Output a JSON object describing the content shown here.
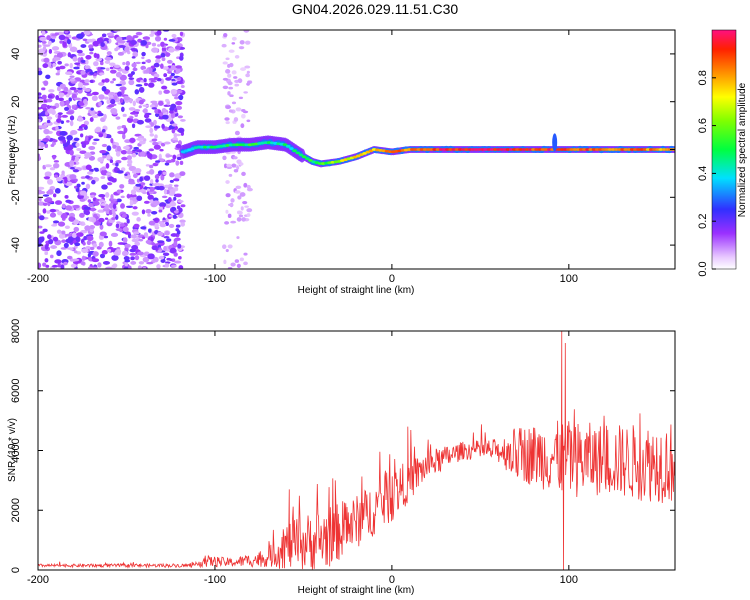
{
  "title": "GN04.2026.029.11.51.C30",
  "chart_data": [
    {
      "type": "heatmap",
      "name": "spectrogram",
      "xlabel": "Height of straight line (km)",
      "ylabel": "Frequency (Hz)",
      "xlim": [
        -200,
        160
      ],
      "ylim": [
        -50,
        50
      ],
      "xticks": [
        -200,
        -100,
        0,
        100
      ],
      "yticks": [
        -40,
        -20,
        0,
        20,
        40
      ],
      "colorbar": {
        "label": "Normalized spectral amplitude",
        "range": [
          0,
          1
        ],
        "ticks": [
          0.0,
          0.2,
          0.4,
          0.6,
          0.8
        ]
      },
      "noise_region_km": [
        -200,
        -118
      ],
      "scattered_noise_km": [
        -95,
        -80
      ],
      "track": [
        {
          "x": -118,
          "y": -1,
          "amp": 0.35
        },
        {
          "x": -110,
          "y": 1,
          "amp": 0.45
        },
        {
          "x": -100,
          "y": 1,
          "amp": 0.5
        },
        {
          "x": -90,
          "y": 2,
          "amp": 0.5
        },
        {
          "x": -80,
          "y": 2,
          "amp": 0.5
        },
        {
          "x": -70,
          "y": 3,
          "amp": 0.45
        },
        {
          "x": -60,
          "y": 2,
          "amp": 0.45
        },
        {
          "x": -52,
          "y": -2,
          "amp": 0.45
        },
        {
          "x": -45,
          "y": -5,
          "amp": 0.5
        },
        {
          "x": -40,
          "y": -6,
          "amp": 0.55
        },
        {
          "x": -30,
          "y": -5,
          "amp": 0.65
        },
        {
          "x": -20,
          "y": -3,
          "amp": 0.75
        },
        {
          "x": -10,
          "y": 0,
          "amp": 0.8
        },
        {
          "x": 0,
          "y": -1,
          "amp": 0.8
        },
        {
          "x": 10,
          "y": 0,
          "amp": 0.85
        },
        {
          "x": 20,
          "y": 0,
          "amp": 0.9
        },
        {
          "x": 40,
          "y": 0,
          "amp": 0.95
        },
        {
          "x": 60,
          "y": 0,
          "amp": 0.95
        },
        {
          "x": 80,
          "y": 0,
          "amp": 0.9
        },
        {
          "x": 100,
          "y": 0,
          "amp": 0.9
        },
        {
          "x": 120,
          "y": 0,
          "amp": 0.85
        },
        {
          "x": 140,
          "y": 0,
          "amp": 0.85
        },
        {
          "x": 160,
          "y": 0,
          "amp": 0.8
        }
      ]
    },
    {
      "type": "line",
      "name": "snr",
      "xlabel": "Height of straight line (km)",
      "ylabel": "SNR (10 * v/v)",
      "xlim": [
        -200,
        160
      ],
      "ylim": [
        0,
        8000
      ],
      "xticks": [
        -200,
        -100,
        0,
        100
      ],
      "yticks": [
        0,
        2000,
        4000,
        6000,
        8000
      ],
      "color": "#ee3333",
      "envelope": [
        {
          "x": -200,
          "base": 150,
          "spread": 50
        },
        {
          "x": -110,
          "base": 150,
          "spread": 60
        },
        {
          "x": -108,
          "base": 300,
          "spread": 200
        },
        {
          "x": -90,
          "base": 250,
          "spread": 150
        },
        {
          "x": -70,
          "base": 400,
          "spread": 300
        },
        {
          "x": -60,
          "base": 800,
          "spread": 800
        },
        {
          "x": -40,
          "base": 1000,
          "spread": 1100
        },
        {
          "x": -20,
          "base": 1600,
          "spread": 900
        },
        {
          "x": 0,
          "base": 2500,
          "spread": 900
        },
        {
          "x": 20,
          "base": 3500,
          "spread": 500
        },
        {
          "x": 40,
          "base": 4000,
          "spread": 300
        },
        {
          "x": 60,
          "base": 4000,
          "spread": 400
        },
        {
          "x": 70,
          "base": 3900,
          "spread": 900
        },
        {
          "x": 90,
          "base": 3800,
          "spread": 1200
        },
        {
          "x": 100,
          "base": 3700,
          "spread": 1300
        },
        {
          "x": 120,
          "base": 3700,
          "spread": 1200
        },
        {
          "x": 140,
          "base": 3600,
          "spread": 1300
        },
        {
          "x": 160,
          "base": 3600,
          "spread": 1400
        }
      ],
      "peaks": [
        {
          "x": 96,
          "y": 8000
        },
        {
          "x": 98,
          "y": 7600
        },
        {
          "x": 97,
          "y": 0
        },
        {
          "x": 9,
          "y": 4800
        },
        {
          "x": -58,
          "y": 2700
        },
        {
          "x": -32,
          "y": 3000
        }
      ]
    }
  ]
}
